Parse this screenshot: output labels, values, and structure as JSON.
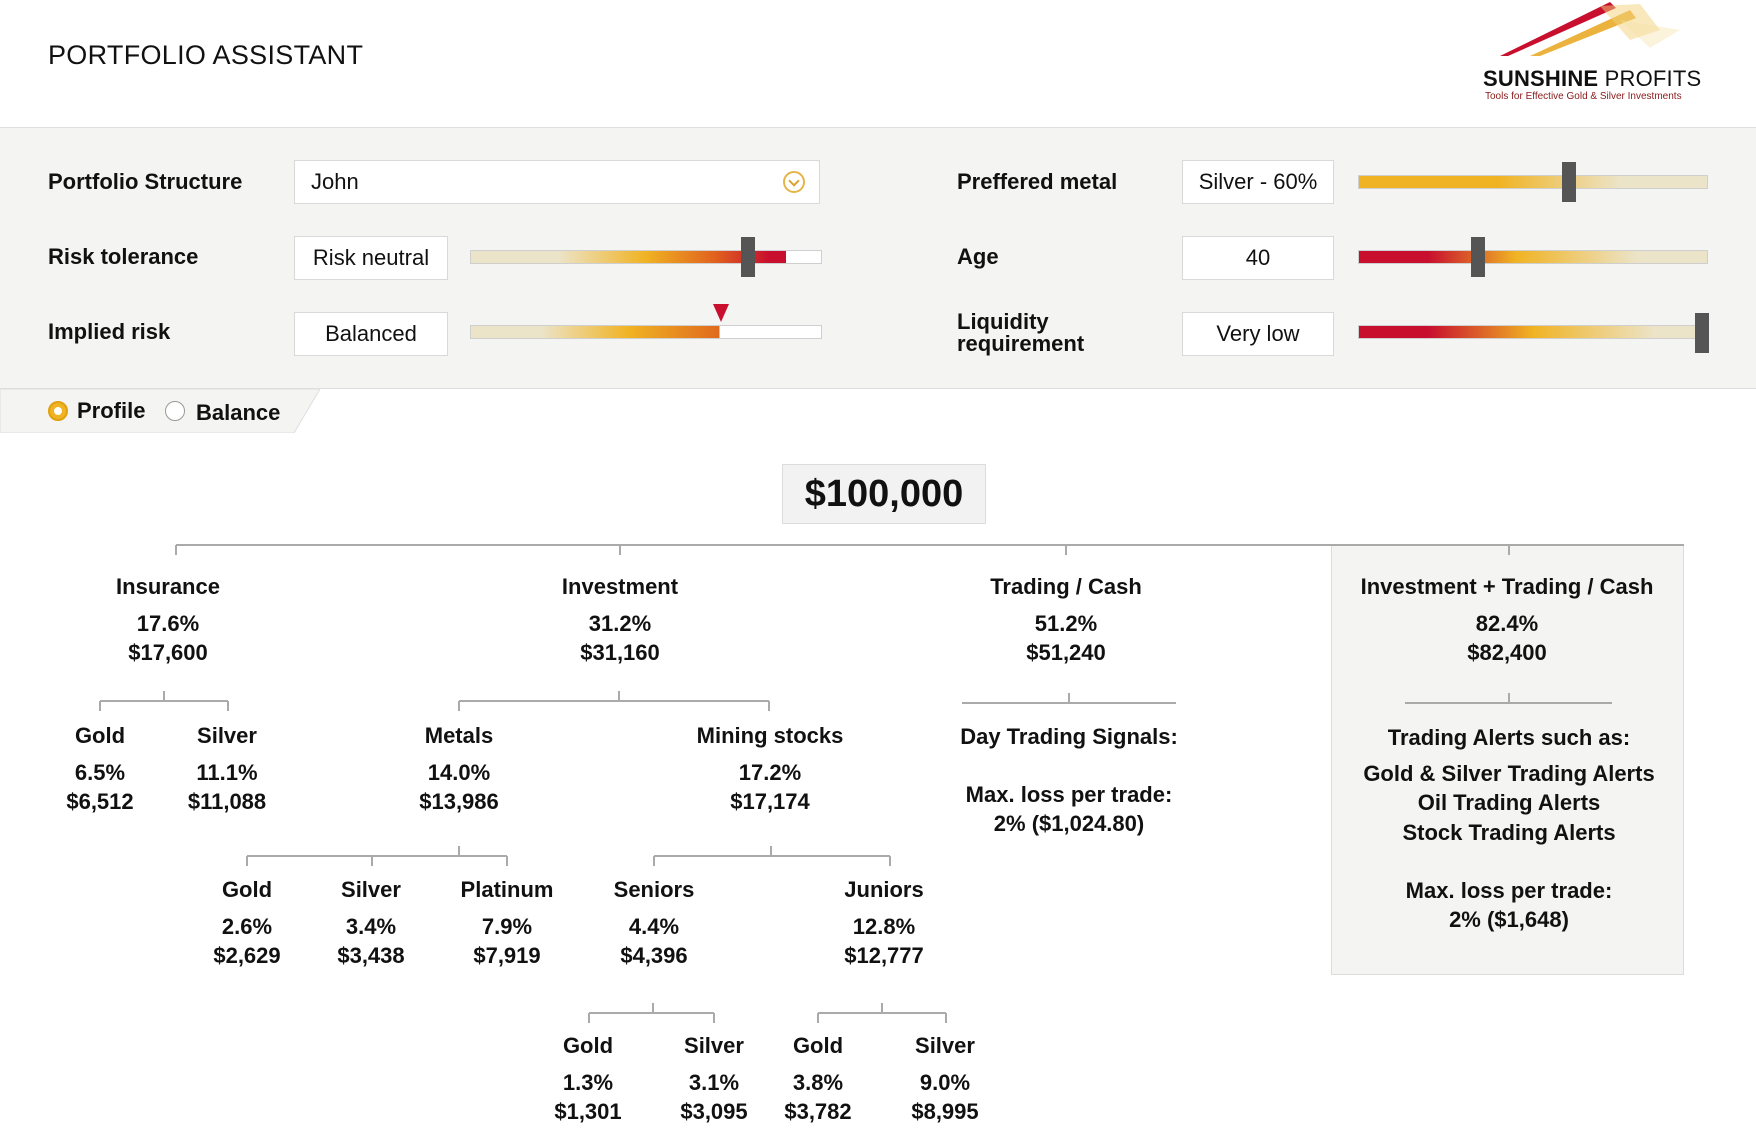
{
  "app_title": "PORTFOLIO ASSISTANT",
  "logo": {
    "name_bold": "SUNSHINE",
    "name_light": " PROFITS",
    "tagline": "Tools for Effective Gold & Silver Investments"
  },
  "controls": {
    "portfolio_structure": {
      "label": "Portfolio Structure",
      "value": "John"
    },
    "risk_tolerance": {
      "label": "Risk tolerance",
      "value": "Risk neutral",
      "level": 0.8
    },
    "implied_risk": {
      "label": "Implied risk",
      "value": "Balanced",
      "level": 0.71
    },
    "preferred_metal": {
      "label": "Preffered metal",
      "value": "Silver - 60%",
      "level": 0.6
    },
    "age": {
      "label": "Age",
      "value": "40",
      "level": 0.34
    },
    "liquidity": {
      "label_line1": "Liquidity",
      "label_line2": "requirement",
      "value": "Very low",
      "level": 1.0
    }
  },
  "tabs": {
    "profile": "Profile",
    "balance": "Balance",
    "selected": "profile"
  },
  "tree": {
    "total": "$100,000",
    "insurance": {
      "name": "Insurance",
      "pct": "17.6%",
      "amt": "$17,600",
      "gold": {
        "name": "Gold",
        "pct": "6.5%",
        "amt": "$6,512"
      },
      "silver": {
        "name": "Silver",
        "pct": "11.1%",
        "amt": "$11,088"
      }
    },
    "investment": {
      "name": "Investment",
      "pct": "31.2%",
      "amt": "$31,160",
      "metals": {
        "name": "Metals",
        "pct": "14.0%",
        "amt": "$13,986",
        "gold": {
          "name": "Gold",
          "pct": "2.6%",
          "amt": "$2,629"
        },
        "silver": {
          "name": "Silver",
          "pct": "3.4%",
          "amt": "$3,438"
        },
        "platinum": {
          "name": "Platinum",
          "pct": "7.9%",
          "amt": "$7,919"
        }
      },
      "mining": {
        "name": "Mining stocks",
        "pct": "17.2%",
        "amt": "$17,174",
        "seniors": {
          "name": "Seniors",
          "pct": "4.4%",
          "amt": "$4,396",
          "gold": {
            "name": "Gold",
            "pct": "1.3%",
            "amt": "$1,301"
          },
          "silver": {
            "name": "Silver",
            "pct": "3.1%",
            "amt": "$3,095"
          }
        },
        "juniors": {
          "name": "Juniors",
          "pct": "12.8%",
          "amt": "$12,777",
          "gold": {
            "name": "Gold",
            "pct": "3.8%",
            "amt": "$3,782"
          },
          "silver": {
            "name": "Silver",
            "pct": "9.0%",
            "amt": "$8,995"
          }
        }
      }
    },
    "trading_cash": {
      "name": "Trading / Cash",
      "pct": "51.2%",
      "amt": "$51,240",
      "signals": "Day Trading Signals:",
      "max_loss_label": "Max. loss per trade:",
      "max_loss_value": "2% ($1,024.80)"
    },
    "combo": {
      "name": "Investment + Trading / Cash",
      "pct": "82.4%",
      "amt": "$82,400",
      "alerts_title": "Trading Alerts such as:",
      "alerts": [
        "Gold & Silver Trading Alerts",
        "Oil Trading Alerts",
        "Stock Trading Alerts"
      ],
      "max_loss_label": "Max. loss per trade:",
      "max_loss_value": "2% ($1,648)"
    }
  },
  "colors": {
    "gold": "#f0b323",
    "red": "#c8102e",
    "track_light": "#ece4c8",
    "thumb": "#555555"
  }
}
